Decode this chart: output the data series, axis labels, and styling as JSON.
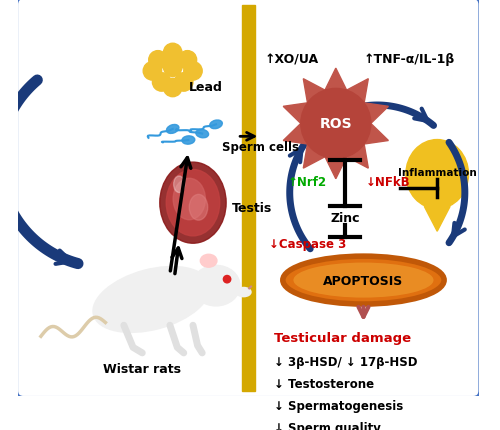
{
  "border_color": "#4472c4",
  "divider_color": "#d4a800",
  "fig_width": 5.0,
  "fig_height": 4.31,
  "left_panel": {
    "lead_color": "#f0c030",
    "arrow_color": "#1a3a7a",
    "label_wistar": "Wistar rats",
    "label_testis": "Testis",
    "label_sperm": "Sperm cells",
    "label_lead": "Lead"
  },
  "right_panel": {
    "ros_color": "#b5443a",
    "ros_spike_color": "#c0554a",
    "ros_label": "ROS",
    "inflammation_color": "#f0c020",
    "inflammation_label": "Inflammation",
    "apoptosis_fill": "#e07010",
    "apoptosis_edge": "#c05808",
    "apoptosis_label": "APOPTOSIS",
    "zinc_label": "Zinc",
    "xo_label": "↑XO/UA",
    "tnf_label": "↑TNF-α/IL-1β",
    "nrf2_label": "↑Nrf2",
    "nfkb_label": "↓NFkB",
    "caspase_label": "↓Caspase 3",
    "damage_title": "Testicular damage",
    "damage_lines": [
      "↓ 3β-HSD/ ↓ 17β-HSD",
      "↓ Testosterone",
      "↓ Spermatogenesis",
      "↓ Sperm quality"
    ],
    "arrow_color": "#1a3a7a",
    "damage_arrow_color": "#b05050",
    "green_color": "#00aa00",
    "red_color": "#cc0000",
    "damage_title_color": "#cc0000"
  }
}
